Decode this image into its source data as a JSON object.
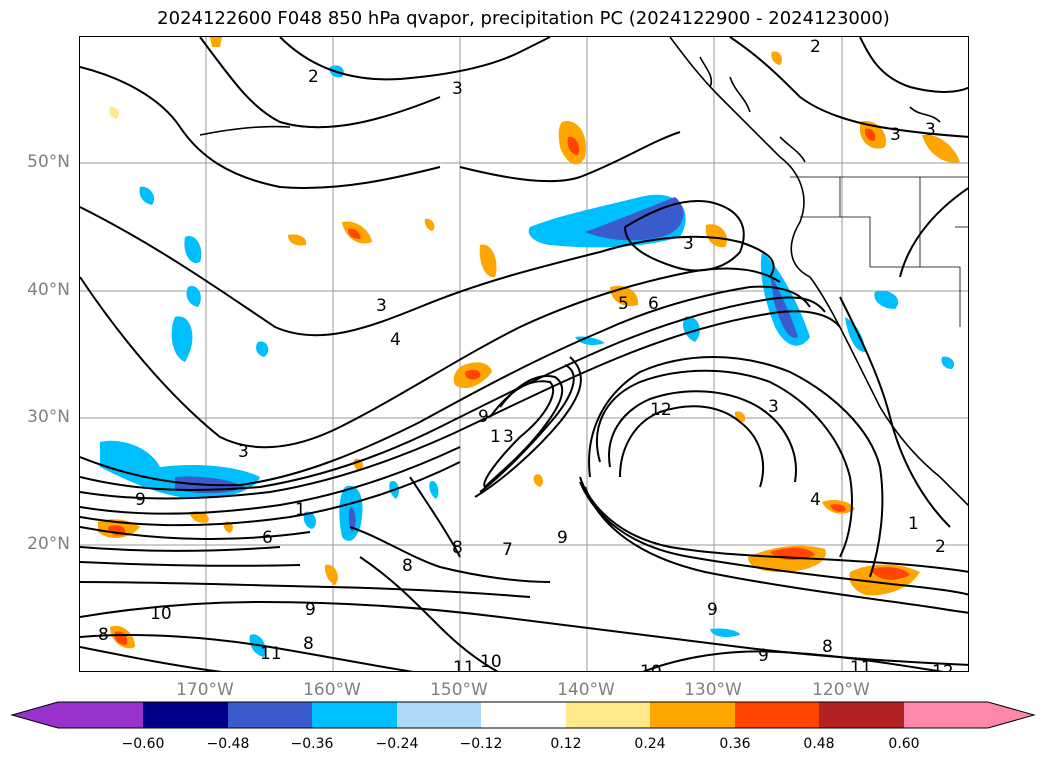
{
  "title": "2024122600 F048 850 hPa qvapor, precipitation PC (2024122900 - 2024123000)",
  "lat_labels": [
    "50°N",
    "40°N",
    "30°N",
    "20°N"
  ],
  "lon_labels": [
    "170°W",
    "160°W",
    "150°W",
    "140°W",
    "130°W",
    "120°W"
  ],
  "colorbar": {
    "ticks": [
      "−0.60",
      "−0.48",
      "−0.36",
      "−0.24",
      "−0.12",
      "0.12",
      "0.24",
      "0.36",
      "0.48",
      "0.60"
    ],
    "colors": [
      "#9932cc",
      "#00008b",
      "#3a5bcc",
      "#00bfff",
      "#add8f7",
      "#ffffff",
      "#ffe98a",
      "#ffa500",
      "#ff4500",
      "#b22222",
      "#ff88aa"
    ]
  },
  "contour_labels": [
    "2",
    "2",
    "3",
    "3",
    "3",
    "3",
    "4",
    "3",
    "5",
    "6",
    "3",
    "9",
    "1",
    "12",
    "3",
    "4",
    "1",
    "2",
    "9",
    "3",
    "1",
    "6",
    "8",
    "8",
    "7",
    "9",
    "9",
    "8",
    "9",
    "8",
    "10",
    "11",
    "12",
    "10",
    "11",
    "10",
    "9",
    "11",
    "8"
  ],
  "precip_colors": {
    "light_blue": "#add8f7",
    "blue": "#00bfff",
    "dark_blue": "#3a5bcc",
    "yellow": "#ffe98a",
    "orange": "#ffa500",
    "red": "#ff4500"
  }
}
